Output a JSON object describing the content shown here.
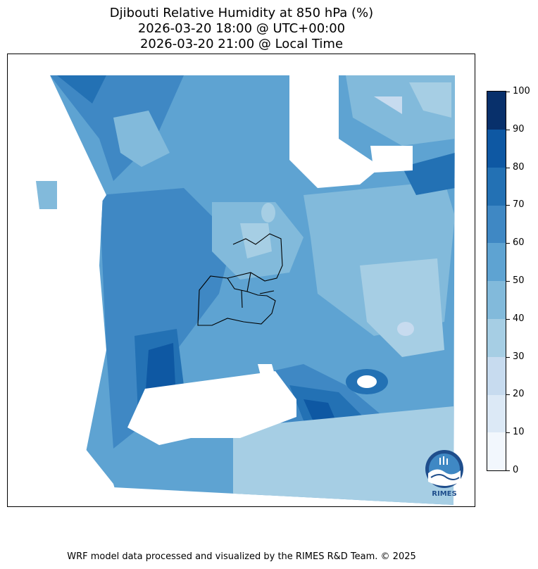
{
  "title": {
    "line1": "Djibouti Relative Humidity at 850 hPa (%)",
    "line2": "2026-03-20 18:00 @ UTC+00:00",
    "line3": "2026-03-20 21:00 @ Local Time"
  },
  "colorbar": {
    "ticks": [
      "0",
      "10",
      "20",
      "30",
      "40",
      "50",
      "60",
      "70",
      "80",
      "90",
      "100"
    ],
    "colors": [
      "#f2f7fd",
      "#dce9f6",
      "#c7dbef",
      "#a6cee4",
      "#82badb",
      "#5ea3d2",
      "#3f88c4",
      "#2371b4",
      "#0e58a3",
      "#08306b"
    ]
  },
  "logo": {
    "text": "RIMES",
    "icon": "rimes-logo-icon"
  },
  "footer": "WRF model data processed and visualized by the RIMES R&D Team. © 2025"
}
